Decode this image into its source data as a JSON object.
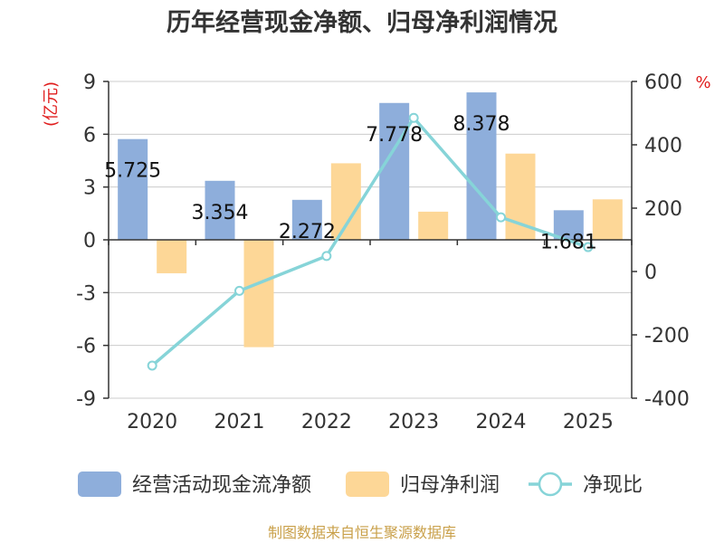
{
  "chart_data": {
    "type": "bar",
    "title": "历年经营现金净额、归母净利润情况",
    "categories": [
      "2020",
      "2021",
      "2022",
      "2023",
      "2024",
      "2025"
    ],
    "y_left": {
      "unit": "(亿元)",
      "ylim": [
        -9,
        9
      ],
      "ticks": [
        "9",
        "6",
        "3",
        "0",
        "-3",
        "-6",
        "-9"
      ]
    },
    "y_right": {
      "unit": "%",
      "ylim": [
        -400,
        600
      ],
      "ticks": [
        "600",
        "400",
        "200",
        "0",
        "-200",
        "-400"
      ]
    },
    "series": [
      {
        "name": "经营活动现金流净额",
        "type": "bar",
        "axis": "left",
        "color": "#8eaedb",
        "values": [
          5.725,
          3.354,
          2.272,
          7.778,
          8.378,
          1.681
        ],
        "labels": [
          "5.725",
          "3.354",
          "2.272",
          "7.778",
          "8.378",
          "1.681"
        ]
      },
      {
        "name": "归母净利润",
        "type": "bar",
        "axis": "left",
        "color": "#fdd797",
        "values": [
          -1.9,
          -6.1,
          4.35,
          1.6,
          4.9,
          2.3
        ]
      },
      {
        "name": "净现比",
        "type": "line",
        "axis": "right",
        "color": "#86d4d8",
        "values": [
          -297,
          -61,
          49,
          485,
          171,
          77
        ]
      }
    ],
    "legend_position": "bottom",
    "grid": true,
    "source": "制图数据来自恒生聚源数据库"
  }
}
